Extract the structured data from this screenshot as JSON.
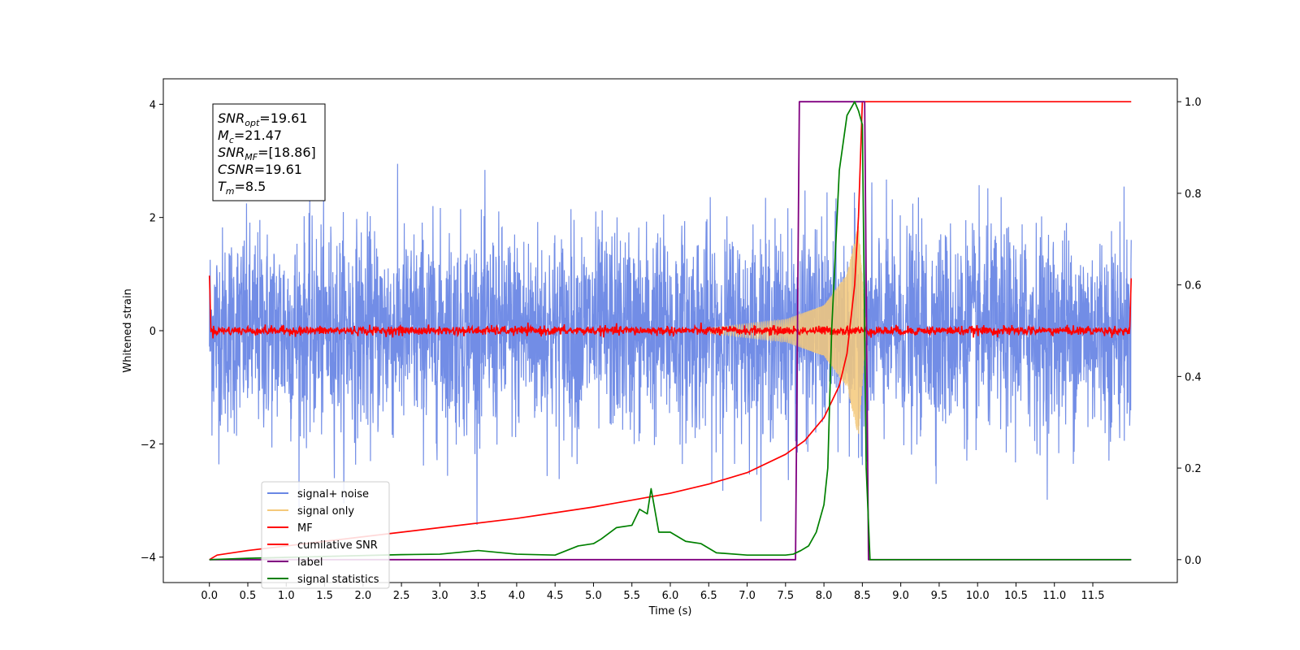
{
  "chart_data": {
    "type": "line",
    "xlabel": "Time (s)",
    "ylabel": "Whitened strain",
    "xlim": [
      -0.6,
      12.6
    ],
    "ylim": [
      -4.45,
      4.45
    ],
    "y2lim": [
      -0.05,
      1.05
    ],
    "x_ticks": [
      0.0,
      0.5,
      1.0,
      1.5,
      2.0,
      2.5,
      3.0,
      3.5,
      4.0,
      4.5,
      5.0,
      5.5,
      6.0,
      6.5,
      7.0,
      7.5,
      8.0,
      8.5,
      9.0,
      9.5,
      10.0,
      10.5,
      11.0,
      11.5
    ],
    "x_tick_labels": [
      "0.0",
      "0.5",
      "1.0",
      "1.5",
      "2.0",
      "2.5",
      "3.0",
      "3.5",
      "4.0",
      "4.5",
      "5.0",
      "5.5",
      "6.0",
      "6.5",
      "7.0",
      "7.5",
      "8.0",
      "8.5",
      "9.0",
      "9.5",
      "10.0",
      "10.5",
      "11.0",
      "11.5"
    ],
    "y_ticks": [
      -4,
      -2,
      0,
      2,
      4
    ],
    "y_tick_labels": [
      "−4",
      "−2",
      "0",
      "2",
      "4"
    ],
    "y2_ticks": [
      0.0,
      0.2,
      0.4,
      0.6,
      0.8,
      1.0
    ],
    "y2_tick_labels": [
      "0.0",
      "0.2",
      "0.4",
      "0.6",
      "0.8",
      "1.0"
    ],
    "legend_placement": "lower-left",
    "series": [
      {
        "name": "signal+ noise",
        "color": "#6a87e5",
        "axis": "left",
        "style": "noise",
        "t_range": [
          0.0,
          12.0
        ],
        "amplitude_envelope": {
          "t": [
            0.0,
            0.05,
            0.5,
            1.7,
            5.75,
            8.42,
            10.5,
            12.0
          ],
          "y": [
            3.0,
            2.3,
            2.5,
            3.4,
            3.1,
            3.3,
            3.4,
            2.9
          ]
        }
      },
      {
        "name": "signal only",
        "color": "#f5c97a",
        "axis": "left",
        "style": "chirp",
        "t_range": [
          6.5,
          8.55
        ],
        "amplitude_envelope": {
          "t": [
            6.5,
            7.5,
            8.0,
            8.3,
            8.45,
            8.55
          ],
          "y": [
            0.05,
            0.2,
            0.45,
            1.0,
            1.9,
            0.0
          ]
        }
      },
      {
        "name": "MF",
        "color": "#ff0000",
        "axis": "left",
        "style": "noise-small",
        "t_range": [
          0.0,
          12.0
        ],
        "edge_values": {
          "start": 1.0,
          "end": 0.9
        }
      },
      {
        "name": "cumilative SNR",
        "color": "#ff0000",
        "axis": "right",
        "x": [
          0.0,
          0.1,
          0.5,
          1.0,
          2.0,
          3.0,
          4.0,
          5.0,
          5.5,
          6.0,
          6.5,
          7.0,
          7.5,
          7.75,
          8.0,
          8.2,
          8.3,
          8.4,
          8.45,
          8.48,
          8.5,
          8.55,
          12.0
        ],
        "y": [
          0.0,
          0.01,
          0.02,
          0.03,
          0.05,
          0.07,
          0.09,
          0.115,
          0.13,
          0.145,
          0.165,
          0.19,
          0.23,
          0.26,
          0.31,
          0.38,
          0.45,
          0.6,
          0.75,
          0.9,
          1.0,
          1.0,
          1.0
        ]
      },
      {
        "name": "label",
        "color": "#800080",
        "axis": "right",
        "x": [
          0.0,
          7.63,
          7.68,
          8.53,
          8.58,
          12.0
        ],
        "y": [
          0.0,
          0.0,
          1.0,
          1.0,
          0.0,
          0.0
        ]
      },
      {
        "name": "signal statistics",
        "color": "#008000",
        "axis": "right",
        "x": [
          0.0,
          0.5,
          1.0,
          1.5,
          2.0,
          2.5,
          3.0,
          3.5,
          4.0,
          4.5,
          4.8,
          5.0,
          5.1,
          5.3,
          5.5,
          5.6,
          5.7,
          5.75,
          5.85,
          6.0,
          6.2,
          6.4,
          6.6,
          7.0,
          7.5,
          7.6,
          7.7,
          7.8,
          7.9,
          8.0,
          8.05,
          8.1,
          8.2,
          8.3,
          8.4,
          8.45,
          8.5,
          8.55,
          8.6,
          12.0
        ],
        "y": [
          0.0,
          0.003,
          0.005,
          0.007,
          0.009,
          0.011,
          0.012,
          0.02,
          0.012,
          0.01,
          0.03,
          0.035,
          0.045,
          0.07,
          0.075,
          0.11,
          0.1,
          0.155,
          0.06,
          0.06,
          0.04,
          0.035,
          0.015,
          0.01,
          0.01,
          0.012,
          0.02,
          0.03,
          0.06,
          0.12,
          0.2,
          0.5,
          0.85,
          0.97,
          1.0,
          0.98,
          0.95,
          0.2,
          0.0,
          0.0
        ]
      }
    ],
    "legend": [
      "signal+ noise",
      "signal only",
      "MF",
      "cumilative SNR",
      "label",
      "signal statistics"
    ]
  },
  "annotation": {
    "lines": [
      {
        "main": "SNR",
        "sub": "opt",
        "rest": "=19.61"
      },
      {
        "main": "M",
        "sub": "c",
        "rest": "=21.47"
      },
      {
        "main": "SNR",
        "sub": "MF",
        "rest": "=[18.86]"
      },
      {
        "main": "CSNR",
        "sub": "",
        "rest": "=19.61"
      },
      {
        "main": "T",
        "sub": "m",
        "rest": "=8.5"
      }
    ]
  }
}
